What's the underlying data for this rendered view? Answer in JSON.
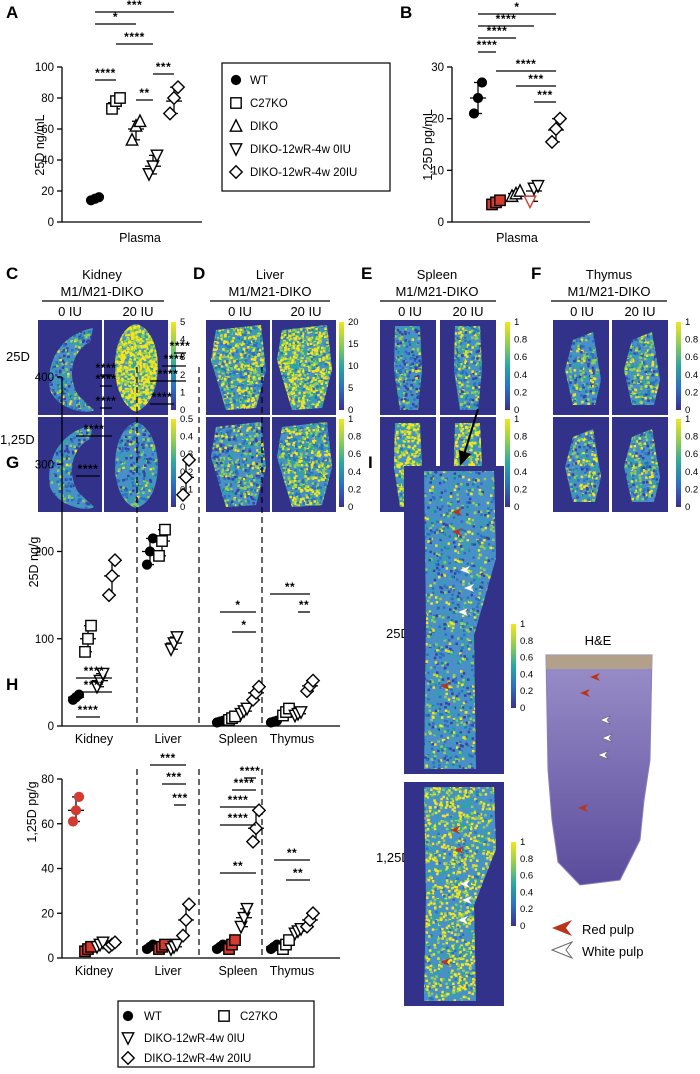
{
  "panels": {
    "A": {
      "letter": "A",
      "ylabel": "25D ng/mL",
      "xlabel": "Plasma"
    },
    "B": {
      "letter": "B",
      "ylabel": "1,25D pg/mL",
      "xlabel": "Plasma"
    },
    "C": {
      "letter": "C",
      "title1": "Kidney",
      "title2": "M1/M21-DIKO"
    },
    "D": {
      "letter": "D",
      "title1": "Liver",
      "title2": "M1/M21-DIKO"
    },
    "E": {
      "letter": "E",
      "title1": "Spleen",
      "title2": "M1/M21-DIKO"
    },
    "F": {
      "letter": "F",
      "title1": "Thymus",
      "title2": "M1/M21-DIKO"
    },
    "G": {
      "letter": "G",
      "ylabel": "25D ng/g"
    },
    "H": {
      "letter": "H",
      "ylabel": "1,25D pg/g"
    },
    "I": {
      "letter": "I",
      "he_title": "H&E"
    }
  },
  "dose_labels": {
    "zero": "0 IU",
    "twenty": "20 IU"
  },
  "row_labels": {
    "d25": "25D",
    "d125": "1,25D"
  },
  "legend_top": [
    "WT",
    "C27KO",
    "DIKO",
    "DIKO-12wR-4w 0IU",
    "DIKO-12wR-4w 20IU"
  ],
  "legend_bottom": [
    "WT",
    "C27KO",
    "DIKO-12wR-4w 0IU",
    "DIKO-12wR-4w 20IU"
  ],
  "pulp_legend": {
    "red": "Red pulp",
    "white": "White pulp"
  },
  "colorbars": {
    "kidney_25d": [
      "5",
      "4",
      "3",
      "2",
      "1",
      "0"
    ],
    "kidney_125d": [
      "0.5",
      "0.4",
      "0.3",
      "0.2",
      "0.1",
      "0"
    ],
    "liver_25d": [
      "20",
      "15",
      "10",
      "5",
      "0"
    ],
    "liver_125d": [
      "1",
      "0.8",
      "0.6",
      "0.4",
      "0.2",
      "0"
    ],
    "spleen_25d": [
      "1",
      "0.8",
      "0.6",
      "0.4",
      "0.2",
      "0"
    ],
    "spleen_125d": [
      "1",
      "0.8",
      "0.6",
      "0.4",
      "0.2",
      "0"
    ],
    "thymus_25d": [
      "1",
      "0.8",
      "0.6",
      "0.4",
      "0.2",
      "0"
    ],
    "thymus_125d": [
      "1",
      "0.8",
      "0.6",
      "0.4",
      "0.2",
      "0"
    ],
    "i_25d": [
      "1",
      "0.8",
      "0.6",
      "0.4",
      "0.2",
      "0"
    ],
    "i_125d": [
      "1",
      "0.8",
      "0.6",
      "0.4",
      "0.2",
      "0"
    ]
  },
  "colors": {
    "red_marker": "#d43a2f",
    "map_low": "#3b3ea6",
    "map_mid": "#2a9bb6",
    "map_high": "#f2e21a"
  },
  "chart_data": [
    {
      "panel": "A",
      "type": "scatter",
      "xlabel": "Plasma",
      "ylabel": "25D ng/mL",
      "ylim": [
        0,
        100
      ],
      "yticks": [
        0,
        20,
        40,
        60,
        80,
        100
      ],
      "series": [
        {
          "name": "WT",
          "values": [
            14,
            15,
            16
          ],
          "mean": 15
        },
        {
          "name": "C27KO",
          "values": [
            73,
            78,
            80
          ],
          "mean": 77
        },
        {
          "name": "DIKO",
          "values": [
            53,
            62,
            65
          ],
          "mean": 60
        },
        {
          "name": "DIKO-12wR-4w 0IU",
          "values": [
            31,
            36,
            43
          ],
          "mean": 36
        },
        {
          "name": "DIKO-12wR-4w 20IU",
          "values": [
            70,
            80,
            87
          ],
          "mean": 78
        }
      ],
      "significance": [
        "****",
        "*",
        "***",
        "****",
        "**",
        "***"
      ]
    },
    {
      "panel": "B",
      "type": "scatter",
      "xlabel": "Plasma",
      "ylabel": "1,25D pg/mL",
      "ylim": [
        0,
        30
      ],
      "yticks": [
        0,
        10,
        20,
        30
      ],
      "series": [
        {
          "name": "WT",
          "values": [
            21,
            24,
            27
          ],
          "mean": 24
        },
        {
          "name": "C27KO",
          "values": [
            3.4,
            3.8,
            4.2
          ],
          "mean": 3.8
        },
        {
          "name": "DIKO",
          "values": [
            5,
            5.5,
            6
          ],
          "mean": 5.5
        },
        {
          "name": "DIKO-12wR-4w 0IU",
          "values": [
            4,
            6.5,
            7
          ],
          "mean": 6
        },
        {
          "name": "DIKO-12wR-4w 20IU",
          "values": [
            15.5,
            18,
            20
          ],
          "mean": 17.8
        }
      ],
      "significance": [
        "*",
        "****",
        "****",
        "****",
        "****",
        "***",
        "***"
      ]
    },
    {
      "panel": "G",
      "type": "scatter",
      "ylabel": "25D ng/g",
      "categories": [
        "Kidney",
        "Liver",
        "Spleen",
        "Thymus"
      ],
      "ylim": [
        0,
        400
      ],
      "yticks": [
        0,
        100,
        200,
        300,
        400
      ],
      "series": [
        {
          "name": "WT",
          "values": [
            [
              30,
              33,
              36
            ],
            [
              185,
              200,
              215
            ],
            [
              4,
              5,
              6
            ],
            [
              4,
              5,
              6
            ]
          ]
        },
        {
          "name": "C27KO",
          "values": [
            [
              85,
              100,
              115
            ],
            [
              195,
              212,
              225
            ],
            [
              7,
              9,
              11
            ],
            [
              12,
              16,
              20
            ]
          ]
        },
        {
          "name": "DIKO-12wR-4w 0IU",
          "values": [
            [
              45,
              52,
              60
            ],
            [
              88,
              95,
              102
            ],
            [
              14,
              17,
              20
            ],
            [
              12,
              14,
              16
            ]
          ]
        },
        {
          "name": "DIKO-12wR-4w 20IU",
          "values": [
            [
              150,
              172,
              190
            ],
            [
              265,
              285,
              305
            ],
            [
              30,
              38,
              45
            ],
            [
              40,
              46,
              52
            ]
          ]
        }
      ],
      "significance": [
        "****",
        "****",
        "****",
        "****",
        "****",
        "****",
        "****",
        "****",
        "****",
        "*",
        "*",
        "**",
        "**"
      ]
    },
    {
      "panel": "H",
      "type": "scatter",
      "ylabel": "1,25D pg/g",
      "categories": [
        "Kidney",
        "Liver",
        "Spleen",
        "Thymus"
      ],
      "ylim": [
        0,
        80
      ],
      "yticks": [
        0,
        20,
        40,
        60,
        80
      ],
      "series": [
        {
          "name": "WT",
          "values": [
            [
              61,
              66,
              72
            ],
            [
              4,
              5,
              6
            ],
            [
              4,
              5,
              6
            ],
            [
              4,
              5,
              6
            ]
          ]
        },
        {
          "name": "C27KO",
          "values": [
            [
              3,
              4,
              5
            ],
            [
              4,
              5,
              6
            ],
            [
              4,
              6,
              8
            ],
            [
              4,
              6,
              8
            ]
          ]
        },
        {
          "name": "DIKO-12wR-4w 0IU",
          "values": [
            [
              5,
              6,
              7
            ],
            [
              4,
              5,
              6
            ],
            [
              14,
              18,
              22
            ],
            [
              11,
              12,
              13
            ]
          ]
        },
        {
          "name": "DIKO-12wR-4w 20IU",
          "values": [
            [
              5,
              6,
              7
            ],
            [
              10,
              17,
              24
            ],
            [
              52,
              58,
              66
            ],
            [
              14,
              17,
              20
            ]
          ]
        }
      ],
      "significance": [
        "****",
        "****",
        "****",
        "***",
        "***",
        "***",
        "****",
        "****",
        "****",
        "****",
        "**",
        "**",
        "**"
      ]
    }
  ]
}
